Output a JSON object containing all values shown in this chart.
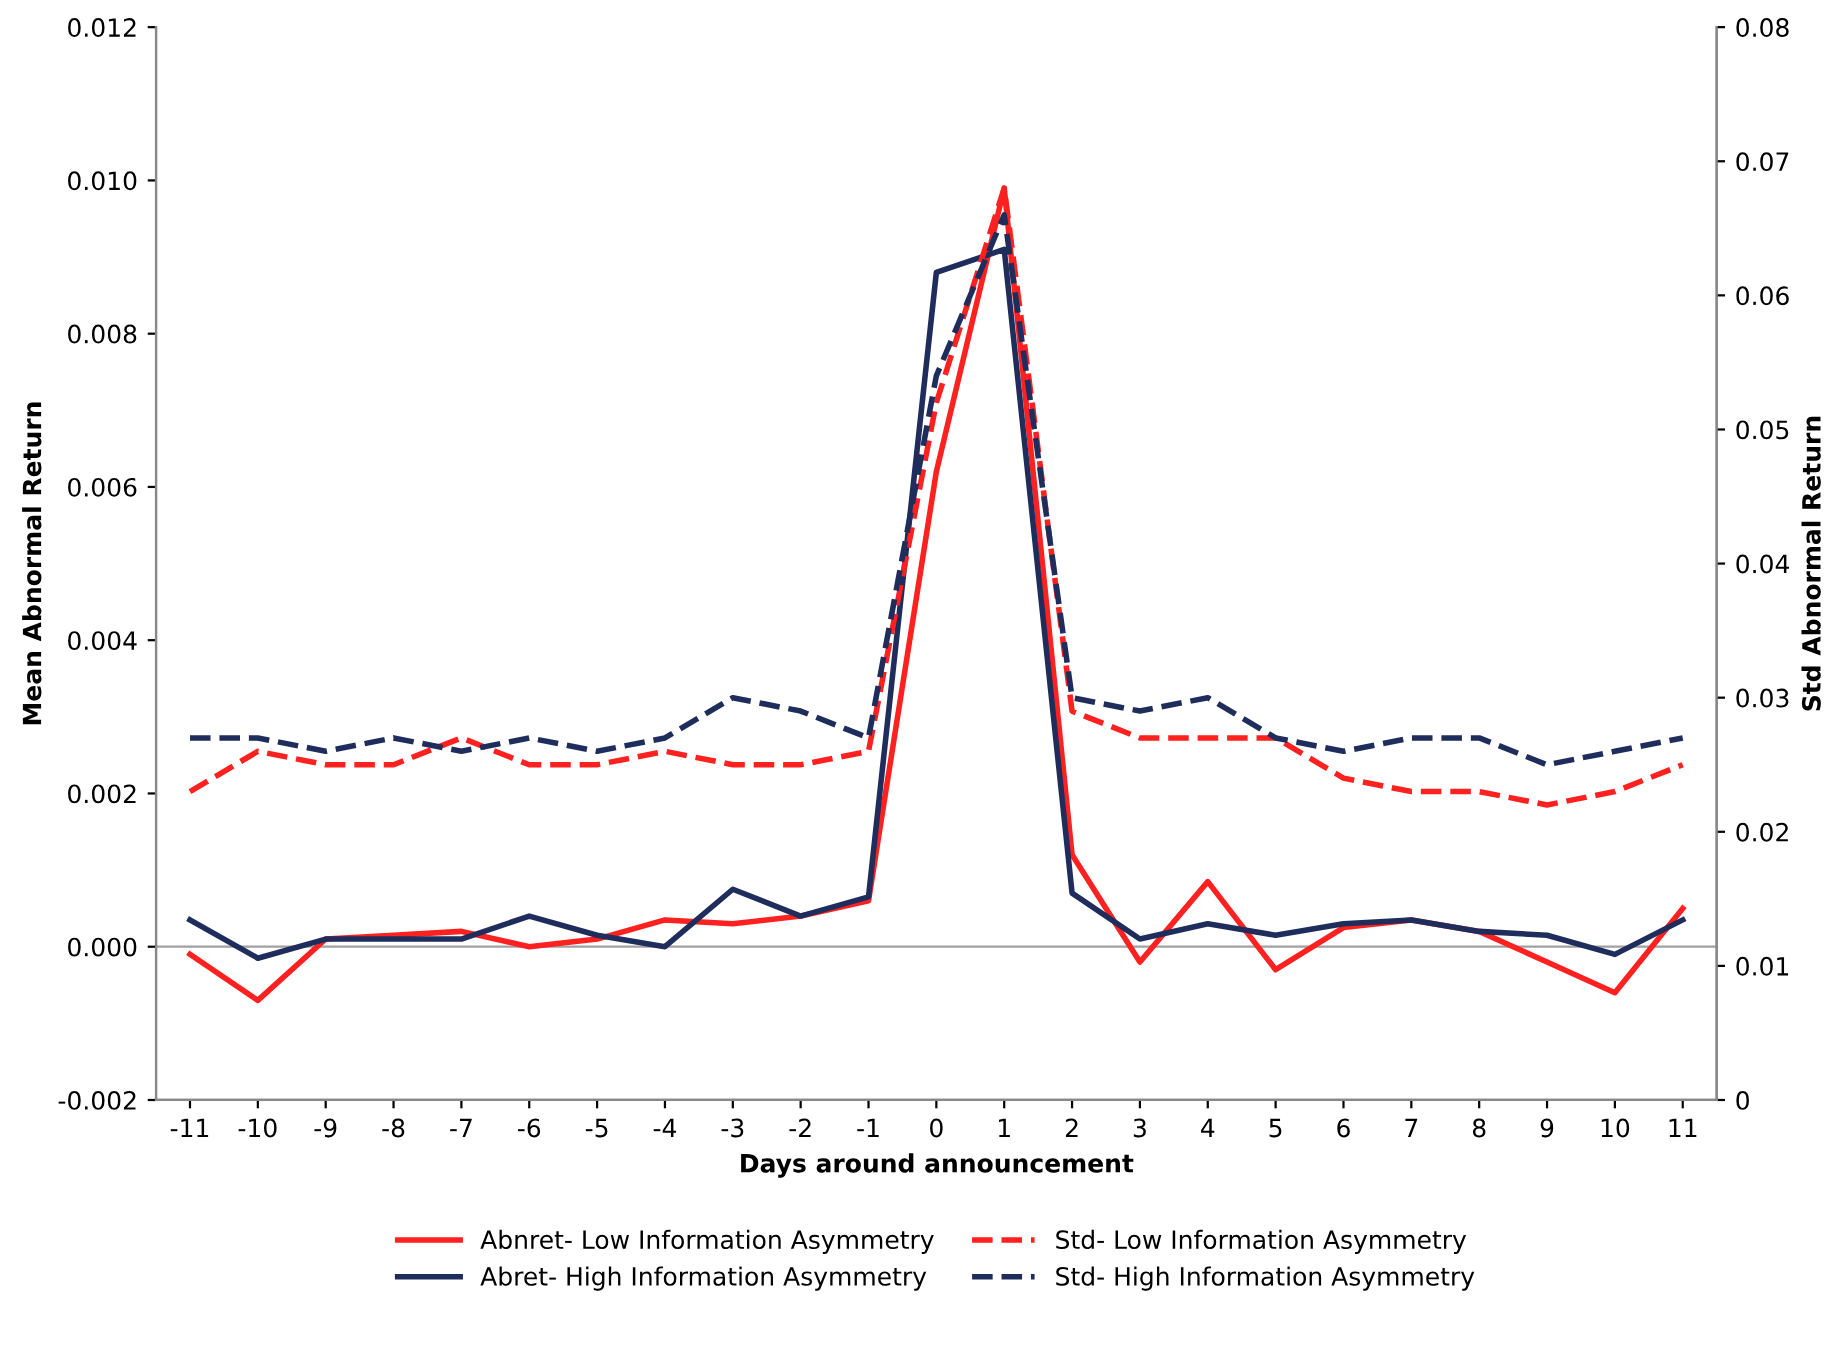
{
  "chart_data": {
    "type": "line",
    "xlabel": "Days around announcement",
    "ylabel": "Mean Abnormal Return",
    "y2label": "Std Abnormal Return",
    "categories": [
      "-11",
      "-10",
      "-9",
      "-8",
      "-7",
      "-6",
      "-5",
      "-4",
      "-3",
      "-2",
      "-1",
      "0",
      "1",
      "2",
      "3",
      "4",
      "5",
      "6",
      "7",
      "8",
      "9",
      "10",
      "11"
    ],
    "series": [
      {
        "name": "Abnret- Low Information Asymmetry",
        "color": "#ff2020",
        "line_style": "solid",
        "values": [
          -0.0001,
          -0.0007,
          0.0001,
          0.00015,
          0.0002,
          0.0,
          0.0001,
          0.00035,
          0.0003,
          0.0004,
          0.0006,
          0.0062,
          0.0099,
          0.0012,
          -0.0002,
          0.00085,
          -0.0003,
          0.00025,
          0.00035,
          0.0002,
          -0.0002,
          -0.0006,
          0.0005
        ]
      },
      {
        "name": "Abret- High Information Asymmetry",
        "color": "#1f2d5c",
        "line_style": "solid",
        "values": [
          0.00035,
          -0.00015,
          0.0001,
          0.0001,
          0.0001,
          0.0004,
          0.00015,
          0.0,
          0.00075,
          0.0004,
          0.00065,
          0.0088,
          0.0091,
          0.0007,
          0.0001,
          0.0003,
          0.00015,
          0.0003,
          0.00035,
          0.0002,
          0.00015,
          -0.0001,
          0.00035
        ]
      },
      {
        "name": "Std- Low Information Asymmetry",
        "color": "#ff2020",
        "line_style": "dashed",
        "axis": "y2",
        "values": [
          0.023,
          0.026,
          0.025,
          0.025,
          0.027,
          0.025,
          0.025,
          0.026,
          0.025,
          0.025,
          0.026,
          0.052,
          0.068,
          0.029,
          0.027,
          0.027,
          0.027,
          0.024,
          0.023,
          0.023,
          0.022,
          0.023,
          0.025
        ]
      },
      {
        "name": "Std- High Information Asymmetry",
        "color": "#1f2d5c",
        "line_style": "dashed",
        "axis": "y2",
        "values": [
          0.027,
          0.027,
          0.026,
          0.027,
          0.026,
          0.027,
          0.026,
          0.027,
          0.03,
          0.029,
          0.027,
          0.054,
          0.066,
          0.03,
          0.029,
          0.03,
          0.027,
          0.026,
          0.027,
          0.027,
          0.025,
          0.026,
          0.027
        ]
      }
    ],
    "ylim": [
      -0.002,
      0.012
    ],
    "yticks": [
      {
        "value": -0.002,
        "label": "-0.002"
      },
      {
        "value": 0,
        "label": "0.000"
      },
      {
        "value": 0.002,
        "label": "0.002"
      },
      {
        "value": 0.004,
        "label": "0.004"
      },
      {
        "value": 0.006,
        "label": "0.006"
      },
      {
        "value": 0.008,
        "label": "0.008"
      },
      {
        "value": 0.01,
        "label": "0.010"
      },
      {
        "value": 0.012,
        "label": "0.012"
      }
    ],
    "y2lim": [
      0,
      0.08
    ],
    "y2ticks": [
      0,
      0.01,
      0.02,
      0.03,
      0.04,
      0.05,
      0.06,
      0.07,
      0.08
    ],
    "ref_lines": [
      {
        "axis": "y",
        "value": 0,
        "color": "#a0a0a0"
      }
    ],
    "grid": false,
    "legend": "bottom",
    "marker": "none"
  }
}
